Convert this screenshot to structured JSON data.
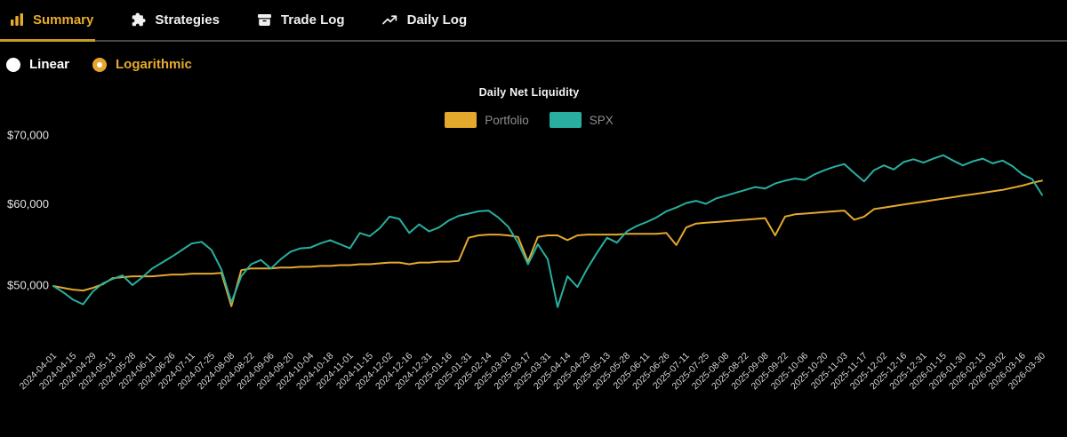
{
  "nav": {
    "tabs": [
      {
        "label": "Summary",
        "icon": "bar-chart-icon",
        "active": true
      },
      {
        "label": "Strategies",
        "icon": "puzzle-icon",
        "active": false
      },
      {
        "label": "Trade Log",
        "icon": "archive-icon",
        "active": false
      },
      {
        "label": "Daily Log",
        "icon": "trend-up-icon",
        "active": false
      }
    ]
  },
  "scale_toggle": {
    "options": [
      {
        "label": "Linear",
        "selected": false
      },
      {
        "label": "Logarithmic",
        "selected": true
      }
    ]
  },
  "chart_data": {
    "type": "line",
    "title": "Daily Net Liquidity",
    "grid": false,
    "legend": {
      "position": "top-center",
      "entries": [
        "Portfolio",
        "SPX"
      ]
    },
    "y_axis": {
      "scale": "logarithmic",
      "tick_values": [
        70000,
        60000,
        50000
      ],
      "tick_labels": [
        "$70,000",
        "$60,000",
        "$50,000"
      ],
      "range": [
        46000,
        73000
      ]
    },
    "x_axis": {
      "tick_labels": [
        "2024-04-01",
        "2024-04-15",
        "2024-04-29",
        "2024-05-13",
        "2024-05-28",
        "2024-06-11",
        "2024-06-26",
        "2024-07-11",
        "2024-07-25",
        "2024-08-08",
        "2024-08-22",
        "2024-09-06",
        "2024-09-20",
        "2024-10-04",
        "2024-10-18",
        "2024-11-01",
        "2024-11-15",
        "2024-12-02",
        "2024-12-16",
        "2024-12-31",
        "2025-01-16",
        "2025-01-31",
        "2025-02-14",
        "2025-03-03",
        "2025-03-17",
        "2025-03-31",
        "2025-04-14",
        "2025-04-29",
        "2025-05-13",
        "2025-05-28",
        "2025-06-11",
        "2025-06-26",
        "2025-07-11",
        "2025-07-25",
        "2025-08-08",
        "2025-08-22",
        "2025-09-08",
        "2025-09-22",
        "2025-10-06",
        "2025-10-20",
        "2025-11-03",
        "2025-11-17",
        "2025-12-02",
        "2025-12-16",
        "2025-12-31",
        "2026-01-15",
        "2026-01-30",
        "2026-02-13",
        "2026-03-02",
        "2026-03-16",
        "2026-03-30"
      ]
    },
    "series": [
      {
        "name": "Portfolio",
        "color": "#E4A82C",
        "points_per_tick": 2,
        "values": [
          49900,
          49700,
          49500,
          49400,
          49700,
          50100,
          50800,
          50900,
          51000,
          51000,
          51000,
          51100,
          51200,
          51200,
          51300,
          51300,
          51300,
          51400,
          47700,
          51700,
          51900,
          51900,
          51900,
          52000,
          52000,
          52100,
          52100,
          52200,
          52200,
          52300,
          52300,
          52400,
          52400,
          52500,
          52600,
          52600,
          52400,
          52600,
          52600,
          52700,
          52700,
          52800,
          55600,
          55900,
          56000,
          56000,
          55900,
          55700,
          52700,
          55700,
          55900,
          55900,
          55300,
          55900,
          56000,
          56000,
          56000,
          56000,
          56100,
          56100,
          56100,
          56100,
          56200,
          54700,
          56900,
          57400,
          57500,
          57600,
          57700,
          57800,
          57900,
          58000,
          58100,
          55900,
          58300,
          58600,
          58700,
          58800,
          58900,
          59000,
          59100,
          57900,
          58300,
          59300,
          59500,
          59700,
          59900,
          60100,
          60300,
          60500,
          60700,
          60900,
          61100,
          61300,
          61500,
          61700,
          61900,
          62200,
          62500,
          62900,
          63200
        ]
      },
      {
        "name": "SPX",
        "color": "#28AFA0",
        "points_per_tick": 2,
        "values": [
          49900,
          49200,
          48400,
          47900,
          49300,
          50200,
          50700,
          51100,
          50000,
          50900,
          51900,
          52600,
          53300,
          54100,
          54900,
          55100,
          54100,
          51800,
          48100,
          51000,
          52400,
          52900,
          51900,
          53000,
          53900,
          54300,
          54400,
          54900,
          55300,
          54800,
          54300,
          56200,
          55800,
          56800,
          58300,
          58000,
          56200,
          57300,
          56400,
          56900,
          57800,
          58400,
          58700,
          59000,
          59100,
          58200,
          57000,
          55000,
          52400,
          54800,
          53000,
          47600,
          51000,
          49800,
          51900,
          53800,
          55600,
          55000,
          56400,
          57100,
          57600,
          58200,
          59000,
          59500,
          60100,
          60400,
          60000,
          60700,
          61100,
          61500,
          61900,
          62300,
          62100,
          62800,
          63200,
          63500,
          63300,
          64100,
          64700,
          65200,
          65600,
          64300,
          63100,
          64700,
          65400,
          64800,
          65900,
          66300,
          65800,
          66400,
          66900,
          66100,
          65400,
          66000,
          66400,
          65700,
          66100,
          65300,
          64100,
          63400,
          61200
        ]
      }
    ]
  },
  "colors": {
    "background": "#000000",
    "accent_gold": "#E8AB2E",
    "teal": "#28AFA0",
    "nav_border": "#474747",
    "axis_text": "#D6D6D6",
    "legend_text": "#8E8E8E"
  }
}
